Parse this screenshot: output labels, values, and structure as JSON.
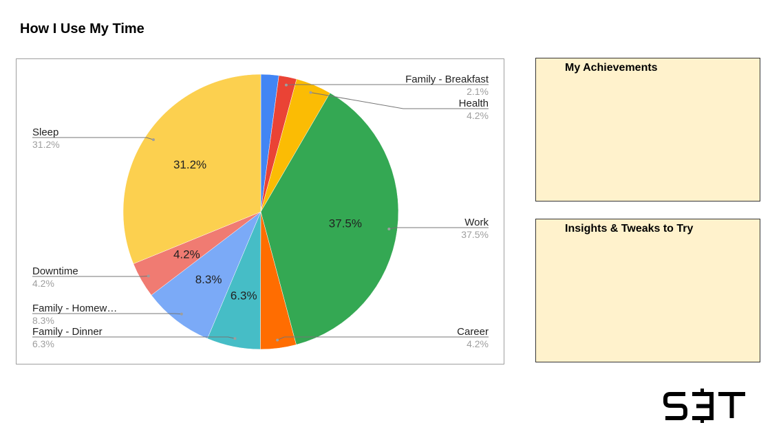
{
  "page": {
    "title": "How I Use My Time"
  },
  "boxes": {
    "achievements_title": "My Achievements",
    "insights_title": "Insights & Tweaks to Try",
    "background_color": "#fff2cc"
  },
  "logo": {
    "text": "S∃T"
  },
  "chart_data": {
    "type": "pie",
    "unit": "%",
    "start_angle": "12 o'clock, clockwise",
    "slices": [
      {
        "label": "Family - Breakfast",
        "short_label": "",
        "value": 2.1,
        "display": "2.1%",
        "color": "#4285f4",
        "inside_label": ""
      },
      {
        "label": "Family - Breakfast",
        "short_label": "Family - Breakfast",
        "value": 2.1,
        "display": "2.1%",
        "color": "#ea4335",
        "inside_label": ""
      },
      {
        "label": "Health",
        "short_label": "Health",
        "value": 4.2,
        "display": "4.2%",
        "color": "#fbbc04",
        "inside_label": ""
      },
      {
        "label": "Work",
        "short_label": "Work",
        "value": 37.5,
        "display": "37.5%",
        "color": "#34a853",
        "inside_label": "37.5%"
      },
      {
        "label": "Career",
        "short_label": "Career",
        "value": 4.2,
        "display": "4.2%",
        "color": "#ff6d01",
        "inside_label": ""
      },
      {
        "label": "Family - Dinner",
        "short_label": "Family - Dinner",
        "value": 6.3,
        "display": "6.3%",
        "color": "#46bdc6",
        "inside_label": "6.3%"
      },
      {
        "label": "Family - Homework",
        "short_label": "Family - Homew…",
        "value": 8.3,
        "display": "8.3%",
        "color": "#7baaf7",
        "inside_label": "8.3%"
      },
      {
        "label": "Downtime",
        "short_label": "Downtime",
        "value": 4.2,
        "display": "4.2%",
        "color": "#f07b72",
        "inside_label": "4.2%"
      },
      {
        "label": "Sleep",
        "short_label": "Sleep",
        "value": 31.2,
        "display": "31.2%",
        "color": "#fcd04f",
        "inside_label": "31.2%"
      }
    ]
  }
}
